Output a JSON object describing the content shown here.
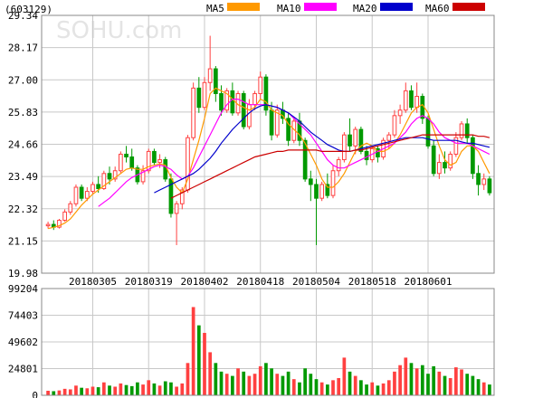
{
  "chart_data": {
    "type": "candlestick",
    "code": "(603129)",
    "watermark": "SOHU.com",
    "price_axis": {
      "ticks": [
        29.34,
        28.17,
        27.0,
        25.83,
        24.66,
        23.49,
        22.32,
        21.15,
        19.98
      ],
      "range": [
        19.98,
        29.34
      ]
    },
    "volume_axis": {
      "ticks": [
        99204,
        74403,
        49602,
        24801,
        0
      ],
      "range": [
        0,
        99204
      ]
    },
    "date_labels": [
      {
        "label": "20180305",
        "index": 8
      },
      {
        "label": "20180319",
        "index": 18
      },
      {
        "label": "20180402",
        "index": 28
      },
      {
        "label": "20180418",
        "index": 38
      },
      {
        "label": "20180504",
        "index": 48
      },
      {
        "label": "20180518",
        "index": 58
      },
      {
        "label": "20180601",
        "index": 68
      }
    ],
    "legend": [
      {
        "name": "MA5",
        "color": "#ff9900"
      },
      {
        "name": "MA10",
        "color": "#ff00ff"
      },
      {
        "name": "MA20",
        "color": "#0000cc"
      },
      {
        "name": "MA60",
        "color": "#cc0000"
      }
    ],
    "colors": {
      "up": "#ff4040",
      "down": "#009900",
      "grid": "#c8c8c8",
      "frame": "#888888"
    },
    "candles": [
      [
        21.7,
        21.85,
        21.6,
        21.75
      ],
      [
        21.75,
        21.9,
        21.55,
        21.65
      ],
      [
        21.65,
        21.95,
        21.6,
        21.9
      ],
      [
        21.9,
        22.3,
        21.85,
        22.2
      ],
      [
        22.2,
        22.6,
        22.1,
        22.5
      ],
      [
        22.5,
        23.2,
        22.4,
        23.1
      ],
      [
        23.1,
        23.2,
        22.6,
        22.7
      ],
      [
        22.7,
        23.1,
        22.6,
        22.95
      ],
      [
        22.95,
        23.3,
        22.85,
        23.2
      ],
      [
        23.2,
        23.5,
        22.9,
        23.05
      ],
      [
        23.05,
        23.7,
        23.0,
        23.6
      ],
      [
        23.6,
        23.85,
        23.2,
        23.4
      ],
      [
        23.4,
        23.85,
        23.3,
        23.7
      ],
      [
        23.7,
        24.4,
        23.6,
        24.3
      ],
      [
        24.3,
        24.6,
        24.0,
        24.2
      ],
      [
        24.2,
        24.5,
        23.7,
        23.8
      ],
      [
        23.8,
        23.9,
        23.2,
        23.3
      ],
      [
        23.3,
        23.9,
        23.2,
        23.7
      ],
      [
        23.7,
        24.5,
        23.6,
        24.4
      ],
      [
        24.4,
        24.5,
        23.9,
        24.0
      ],
      [
        24.0,
        24.3,
        23.8,
        24.1
      ],
      [
        24.1,
        24.2,
        23.3,
        23.4
      ],
      [
        23.4,
        23.6,
        22.0,
        22.15
      ],
      [
        22.15,
        22.6,
        21.0,
        22.5
      ],
      [
        22.5,
        23.1,
        22.3,
        23.0
      ],
      [
        23.0,
        25.0,
        22.9,
        24.9
      ],
      [
        24.9,
        26.9,
        24.8,
        26.7
      ],
      [
        26.7,
        27.1,
        25.8,
        26.0
      ],
      [
        26.0,
        27.1,
        25.9,
        26.9
      ],
      [
        26.9,
        28.6,
        26.6,
        27.4
      ],
      [
        27.4,
        27.5,
        26.2,
        26.5
      ],
      [
        26.5,
        26.8,
        25.7,
        25.9
      ],
      [
        25.9,
        26.7,
        25.8,
        26.6
      ],
      [
        26.6,
        26.9,
        25.7,
        25.8
      ],
      [
        25.8,
        26.6,
        25.7,
        26.5
      ],
      [
        26.5,
        26.6,
        25.2,
        25.3
      ],
      [
        25.3,
        26.3,
        25.2,
        26.1
      ],
      [
        26.1,
        26.6,
        25.9,
        26.5
      ],
      [
        26.5,
        27.3,
        26.3,
        27.1
      ],
      [
        27.1,
        27.2,
        25.7,
        25.9
      ],
      [
        25.9,
        26.2,
        24.8,
        25.0
      ],
      [
        25.0,
        26.1,
        24.9,
        25.9
      ],
      [
        25.9,
        26.2,
        25.4,
        25.6
      ],
      [
        25.6,
        25.8,
        24.6,
        24.8
      ],
      [
        24.8,
        25.6,
        24.7,
        25.5
      ],
      [
        25.5,
        25.8,
        24.6,
        24.8
      ],
      [
        24.8,
        24.9,
        23.3,
        23.4
      ],
      [
        23.4,
        23.7,
        22.6,
        23.2
      ],
      [
        23.2,
        23.4,
        21.0,
        22.7
      ],
      [
        22.7,
        23.3,
        22.6,
        23.2
      ],
      [
        23.2,
        23.6,
        22.7,
        22.8
      ],
      [
        22.8,
        23.9,
        22.7,
        23.7
      ],
      [
        23.7,
        24.2,
        23.5,
        24.1
      ],
      [
        24.1,
        25.1,
        24.0,
        25.0
      ],
      [
        25.0,
        25.6,
        24.4,
        24.6
      ],
      [
        24.6,
        25.3,
        24.3,
        25.2
      ],
      [
        25.2,
        25.3,
        24.3,
        24.4
      ],
      [
        24.4,
        24.6,
        23.9,
        24.1
      ],
      [
        24.1,
        24.6,
        24.0,
        24.5
      ],
      [
        24.5,
        24.6,
        24.0,
        24.2
      ],
      [
        24.2,
        24.9,
        24.1,
        24.8
      ],
      [
        24.8,
        25.1,
        24.5,
        25.0
      ],
      [
        25.0,
        25.9,
        24.9,
        25.7
      ],
      [
        25.7,
        26.1,
        25.4,
        25.9
      ],
      [
        25.9,
        26.9,
        25.8,
        26.6
      ],
      [
        26.6,
        26.8,
        25.9,
        26.0
      ],
      [
        26.0,
        26.9,
        25.8,
        26.4
      ],
      [
        26.4,
        26.5,
        25.4,
        25.6
      ],
      [
        25.6,
        25.7,
        24.5,
        24.6
      ],
      [
        24.6,
        24.8,
        23.5,
        23.6
      ],
      [
        23.6,
        24.3,
        23.4,
        24.0
      ],
      [
        24.0,
        24.4,
        23.6,
        23.8
      ],
      [
        23.8,
        24.4,
        23.7,
        24.3
      ],
      [
        24.3,
        25.1,
        24.2,
        24.9
      ],
      [
        24.9,
        25.5,
        24.8,
        25.4
      ],
      [
        25.4,
        25.6,
        24.7,
        24.9
      ],
      [
        24.9,
        25.0,
        23.4,
        23.6
      ],
      [
        23.6,
        23.9,
        22.8,
        23.2
      ],
      [
        23.2,
        23.6,
        23.0,
        23.4
      ],
      [
        23.4,
        23.5,
        22.8,
        22.9
      ]
    ],
    "volume": [
      4200,
      3800,
      4500,
      6000,
      5500,
      9000,
      7000,
      6500,
      8000,
      7500,
      12000,
      9000,
      8000,
      11000,
      9500,
      8500,
      12000,
      10000,
      14000,
      11000,
      9000,
      13000,
      12000,
      8000,
      11000,
      30000,
      82000,
      65000,
      58000,
      40000,
      30000,
      22000,
      20000,
      18000,
      25000,
      22000,
      18000,
      20000,
      27000,
      30000,
      25000,
      20000,
      18000,
      22000,
      15000,
      12000,
      25000,
      20000,
      15000,
      12000,
      10000,
      14000,
      16000,
      35000,
      22000,
      18000,
      14000,
      10000,
      12000,
      9000,
      11000,
      14000,
      22000,
      28000,
      35000,
      30000,
      25000,
      28000,
      20000,
      27000,
      22000,
      18000,
      16000,
      26000,
      24000,
      20000,
      18000,
      15000,
      12000,
      10000
    ],
    "ma5": [
      21.6,
      21.65,
      21.7,
      21.8,
      21.95,
      22.2,
      22.45,
      22.65,
      22.85,
      23.0,
      23.15,
      23.3,
      23.45,
      23.6,
      23.75,
      23.8,
      23.75,
      23.75,
      23.85,
      23.9,
      23.95,
      23.9,
      23.45,
      23.1,
      22.9,
      23.4,
      24.1,
      24.8,
      25.6,
      26.5,
      26.7,
      26.6,
      26.5,
      26.3,
      26.1,
      26.0,
      25.9,
      26.0,
      26.3,
      26.2,
      25.9,
      25.8,
      25.7,
      25.4,
      25.2,
      25.0,
      24.7,
      24.3,
      23.9,
      23.4,
      23.1,
      23.1,
      23.3,
      23.6,
      24.0,
      24.4,
      24.6,
      24.7,
      24.6,
      24.4,
      24.4,
      24.5,
      24.7,
      25.0,
      25.4,
      25.8,
      26.0,
      26.1,
      25.8,
      25.2,
      24.6,
      24.1,
      23.9,
      24.0,
      24.4,
      24.6,
      24.6,
      24.4,
      24.0,
      23.6
    ],
    "ma10": [
      null,
      null,
      null,
      null,
      null,
      null,
      null,
      null,
      null,
      22.4,
      22.55,
      22.7,
      22.9,
      23.1,
      23.3,
      23.45,
      23.55,
      23.65,
      23.75,
      23.85,
      23.9,
      23.85,
      23.75,
      23.55,
      23.4,
      23.5,
      23.8,
      24.2,
      24.6,
      25.0,
      25.4,
      25.8,
      26.1,
      26.3,
      26.3,
      26.2,
      26.1,
      26.1,
      26.1,
      26.1,
      26.05,
      26.0,
      25.9,
      25.8,
      25.6,
      25.4,
      25.2,
      25.0,
      24.7,
      24.4,
      24.1,
      23.9,
      23.8,
      23.8,
      23.9,
      24.0,
      24.1,
      24.2,
      24.3,
      24.4,
      24.5,
      24.6,
      24.7,
      24.9,
      25.1,
      25.4,
      25.6,
      25.7,
      25.6,
      25.4,
      25.1,
      24.9,
      24.8,
      24.7,
      24.7,
      24.7,
      24.6,
      24.5,
      24.4,
      24.3
    ],
    "ma20": [
      null,
      null,
      null,
      null,
      null,
      null,
      null,
      null,
      null,
      null,
      null,
      null,
      null,
      null,
      null,
      null,
      null,
      null,
      null,
      22.9,
      23.0,
      23.1,
      23.2,
      23.3,
      23.4,
      23.5,
      23.6,
      23.75,
      23.95,
      24.15,
      24.4,
      24.7,
      24.95,
      25.2,
      25.4,
      25.6,
      25.8,
      25.95,
      26.05,
      26.1,
      26.05,
      26.0,
      25.9,
      25.8,
      25.65,
      25.5,
      25.3,
      25.1,
      24.95,
      24.8,
      24.65,
      24.55,
      24.45,
      24.4,
      24.4,
      24.45,
      24.5,
      24.55,
      24.6,
      24.65,
      24.7,
      24.75,
      24.8,
      24.85,
      24.9,
      24.9,
      24.9,
      24.9,
      24.85,
      24.8,
      24.8,
      24.8,
      24.8,
      24.8,
      24.75,
      24.7,
      24.7,
      24.65,
      24.6,
      24.55
    ],
    "ma60": [
      null,
      null,
      null,
      null,
      null,
      null,
      null,
      null,
      null,
      null,
      null,
      null,
      null,
      null,
      null,
      null,
      null,
      null,
      null,
      null,
      null,
      null,
      22.7,
      22.8,
      22.9,
      23.0,
      23.1,
      23.2,
      23.3,
      23.4,
      23.5,
      23.6,
      23.7,
      23.8,
      23.9,
      24.0,
      24.1,
      24.2,
      24.25,
      24.3,
      24.35,
      24.4,
      24.4,
      24.45,
      24.45,
      24.45,
      24.45,
      24.45,
      24.45,
      24.4,
      24.4,
      24.4,
      24.4,
      24.4,
      24.4,
      24.45,
      24.45,
      24.5,
      24.55,
      24.6,
      24.65,
      24.7,
      24.75,
      24.8,
      24.85,
      24.9,
      24.95,
      25.0,
      25.0,
      25.0,
      25.0,
      25.0,
      25.0,
      25.0,
      25.0,
      25.0,
      25.0,
      24.95,
      24.95,
      24.9
    ]
  }
}
